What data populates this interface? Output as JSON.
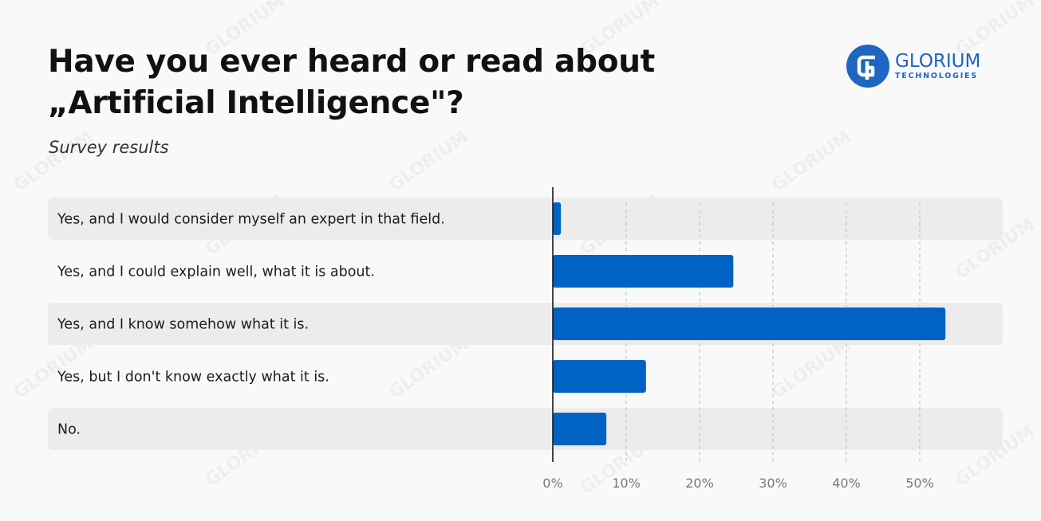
{
  "header": {
    "title_line1": "Have you ever heard or read about",
    "title_line2": "„Artificial Intelligence\"?",
    "subtitle": "Survey results"
  },
  "logo": {
    "name": "GLORIUM",
    "sub": "TECHNOLOGIES",
    "brand_color": "#1d66c1",
    "icon": "glorium-g-logo-icon"
  },
  "watermark_text": "GLORIUM",
  "colors": {
    "bar": "#0063c4",
    "row_band": "#ececec",
    "grid": "#c4c4c4",
    "axis": "#1a1a1a"
  },
  "chart_data": {
    "type": "bar",
    "orientation": "horizontal",
    "title": "Have you ever heard or read about „Artificial Intelligence\"?",
    "subtitle": "Survey results",
    "categories": [
      "Yes, and I would consider myself an expert in that field.",
      "Yes, and I could explain well, what it is about.",
      "Yes, and I know somehow what it is.",
      "Yes, but I don't know exactly what it is.",
      "No."
    ],
    "values": [
      1.1,
      24.6,
      53.5,
      12.7,
      7.3
    ],
    "unit": "%",
    "xlim": [
      0,
      55
    ],
    "ticks": [
      0,
      10,
      20,
      30,
      40,
      50
    ],
    "tick_labels": [
      "0%",
      "10%",
      "20%",
      "30%",
      "40%",
      "50%"
    ],
    "grid": "vertical dashed"
  }
}
